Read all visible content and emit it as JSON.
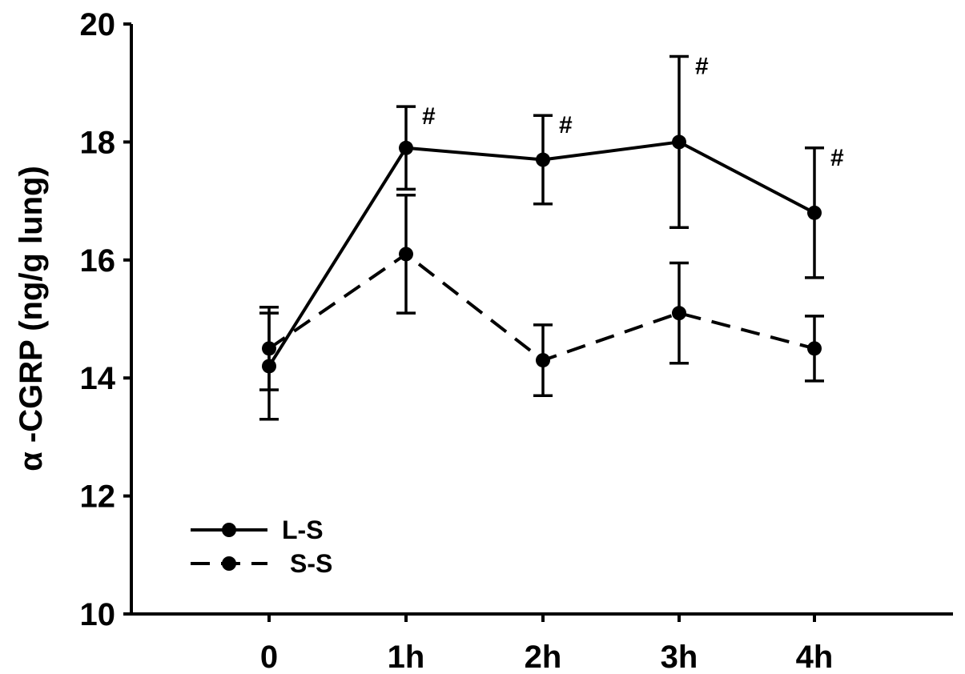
{
  "chart_data": {
    "type": "line",
    "title": "",
    "xlabel": "",
    "ylabel": "α -CGRP (ng/g lung)",
    "categories": [
      "0",
      "1h",
      "2h",
      "3h",
      "4h"
    ],
    "ylim": [
      10,
      20
    ],
    "yticks": [
      10,
      12,
      14,
      16,
      18,
      20
    ],
    "grid": false,
    "legend_position": "bottom-left",
    "series": [
      {
        "name": "L-S",
        "line_style": "solid",
        "color": "#000000",
        "values": [
          14.2,
          17.9,
          17.7,
          18.0,
          16.8
        ],
        "error": [
          0.9,
          0.7,
          0.75,
          1.45,
          1.1
        ],
        "annotations": [
          "",
          "#",
          "#",
          "#",
          "#"
        ]
      },
      {
        "name": "S-S",
        "line_style": "dashed",
        "color": "#000000",
        "values": [
          14.5,
          16.1,
          14.3,
          15.1,
          14.5
        ],
        "error": [
          0.7,
          1.0,
          0.6,
          0.85,
          0.55
        ],
        "annotations": [
          "",
          "",
          "",
          "",
          ""
        ]
      }
    ]
  }
}
